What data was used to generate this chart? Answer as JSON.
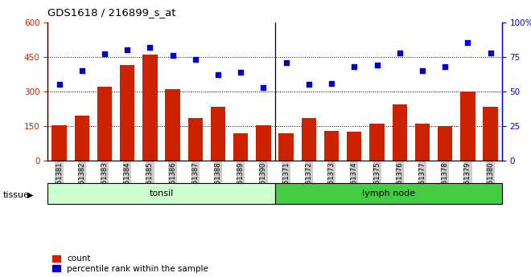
{
  "title": "GDS1618 / 216899_s_at",
  "categories": [
    "GSM51381",
    "GSM51382",
    "GSM51383",
    "GSM51384",
    "GSM51385",
    "GSM51386",
    "GSM51387",
    "GSM51388",
    "GSM51389",
    "GSM51390",
    "GSM51371",
    "GSM51372",
    "GSM51373",
    "GSM51374",
    "GSM51375",
    "GSM51376",
    "GSM51377",
    "GSM51378",
    "GSM51379",
    "GSM51380"
  ],
  "bar_values": [
    155,
    195,
    320,
    415,
    460,
    310,
    185,
    235,
    120,
    155,
    120,
    185,
    130,
    125,
    160,
    245,
    160,
    150,
    300,
    235
  ],
  "dot_values": [
    55,
    65,
    77,
    80,
    82,
    76,
    73,
    62,
    64,
    53,
    71,
    55,
    56,
    68,
    69,
    78,
    65,
    68,
    85,
    78
  ],
  "tonsil_count": 10,
  "lymph_count": 10,
  "tonsil_label": "tonsil",
  "lymph_label": "lymph node",
  "tissue_label": "tissue",
  "bar_color": "#cc2200",
  "dot_color": "#0000cc",
  "tonsil_bg": "#ccffcc",
  "lymph_bg": "#44cc44",
  "xlabel_bg": "#cccccc",
  "ylim_left": [
    0,
    600
  ],
  "ylim_right": [
    0,
    100
  ],
  "yticks_left": [
    0,
    150,
    300,
    450,
    600
  ],
  "ytick_labels_left": [
    "0",
    "150",
    "300",
    "450",
    "600"
  ],
  "yticks_right": [
    0,
    25,
    50,
    75,
    100
  ],
  "ytick_labels_right": [
    "0",
    "25",
    "50",
    "75",
    "100%"
  ],
  "hlines": [
    150,
    300,
    450
  ],
  "legend_count_label": "count",
  "legend_pct_label": "percentile rank within the sample",
  "figsize": [
    6.6,
    3.45
  ],
  "dpi": 100
}
